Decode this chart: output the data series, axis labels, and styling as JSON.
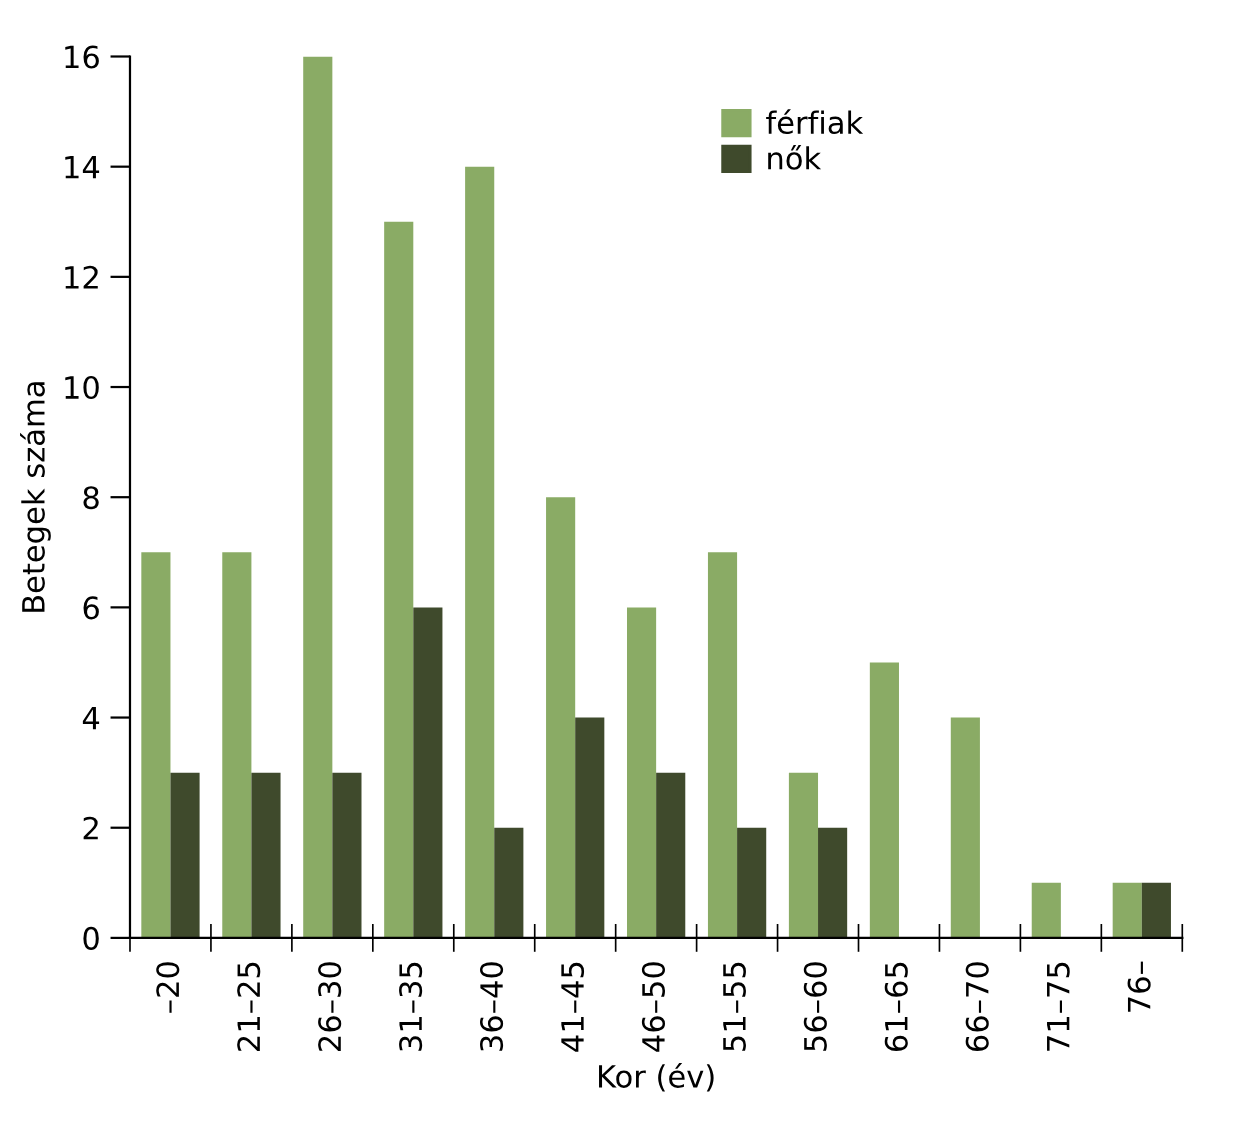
{
  "chart_data": {
    "type": "bar",
    "xlabel": "Kor (év)",
    "ylabel": "Betegek száma",
    "categories": [
      "–20",
      "21–25",
      "26–30",
      "31–35",
      "36–40",
      "41–45",
      "46–50",
      "51–55",
      "56–60",
      "61–65",
      "66–70",
      "71–75",
      "76–"
    ],
    "series": [
      {
        "name": "férfiak",
        "color": "#8aab65",
        "values": [
          7,
          7,
          16,
          13,
          14,
          8,
          6,
          7,
          3,
          5,
          4,
          1,
          1
        ]
      },
      {
        "name": "nők",
        "color": "#3f4a2c",
        "values": [
          3,
          3,
          3,
          6,
          2,
          4,
          3,
          2,
          2,
          0,
          0,
          0,
          1
        ]
      }
    ],
    "ylim": [
      0,
      16
    ],
    "yticks": [
      0,
      2,
      4,
      6,
      8,
      10,
      12,
      14,
      16
    ],
    "grid": false,
    "legend": "top"
  }
}
